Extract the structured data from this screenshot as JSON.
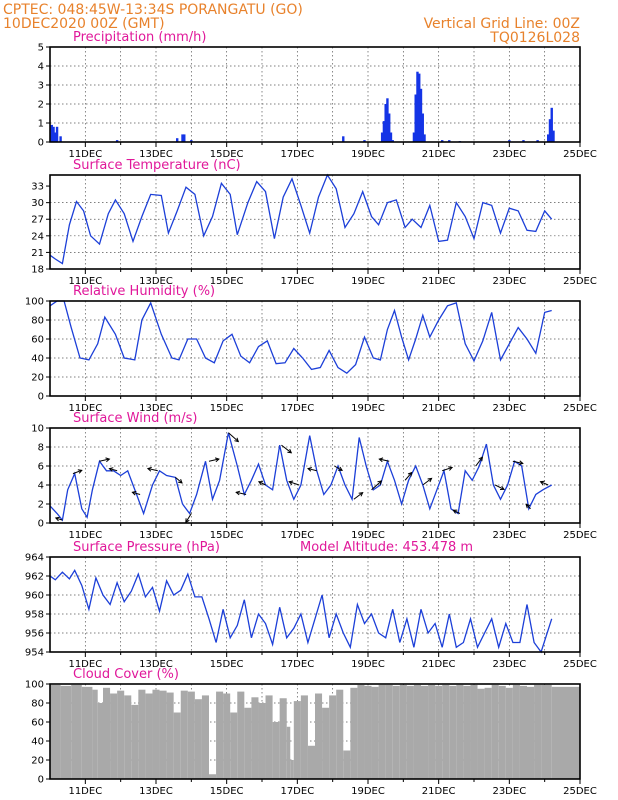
{
  "header": {
    "left_line1": "CPTEC:   048:45W-13:34S   PORANGATU (GO)",
    "left_line2": "10DEC2020 00Z (GMT)",
    "right_line1": "Vertical Grid Line: 00Z",
    "right_line2": "TQ0126L028"
  },
  "colors": {
    "header": "#e8822c",
    "title": "#e0189a",
    "series": "#1c3fd8",
    "precip_bar": "#1434e6",
    "cloud_fill": "#a9a9a9",
    "wind_arrow": "#000000"
  },
  "chart_data": [
    {
      "id": "precip",
      "type": "bar",
      "title": "Precipitation (mm/h)",
      "ylim": [
        0,
        5
      ],
      "yticks": [
        0,
        1,
        2,
        3,
        4,
        5
      ],
      "x_unit": "days since 10DEC2020 00Z",
      "xticks": [
        "11DEC",
        "13DEC",
        "15DEC",
        "17DEC",
        "19DEC",
        "21DEC",
        "23DEC",
        "25DEC"
      ],
      "x": [
        0.05,
        0.1,
        0.15,
        0.2,
        0.3,
        1.9,
        3.6,
        3.75,
        3.8,
        4.0,
        8.3,
        8.9,
        9.4,
        9.45,
        9.5,
        9.55,
        9.6,
        9.65,
        9.7,
        10.3,
        10.35,
        10.4,
        10.45,
        10.5,
        10.55,
        10.6,
        11.1,
        11.3,
        11.6,
        13.0,
        13.4,
        13.8,
        14.1,
        14.15,
        14.2,
        14.25
      ],
      "values": [
        0.9,
        0.8,
        0.5,
        0.8,
        0.3,
        0.1,
        0.2,
        0.4,
        0.4,
        0.1,
        0.3,
        0.1,
        0.5,
        1.1,
        2.0,
        2.3,
        1.5,
        0.5,
        0.1,
        0.5,
        2.5,
        3.7,
        3.6,
        2.8,
        1.5,
        0.4,
        0.1,
        0.1,
        0.05,
        0.1,
        0.1,
        0.1,
        0.4,
        1.2,
        1.8,
        0.6
      ]
    },
    {
      "id": "temp",
      "type": "line",
      "title": "Surface Temperature (nC)",
      "ylim": [
        18,
        35
      ],
      "yticks": [
        18,
        21,
        24,
        27,
        30,
        33
      ],
      "x_unit": "days since 10DEC2020 00Z",
      "xticks": [
        "11DEC",
        "13DEC",
        "15DEC",
        "17DEC",
        "19DEC",
        "21DEC",
        "23DEC",
        "25DEC"
      ],
      "x": [
        0,
        0.15,
        0.35,
        0.55,
        0.75,
        0.95,
        1.15,
        1.4,
        1.65,
        1.85,
        2.1,
        2.35,
        2.6,
        2.85,
        3.15,
        3.35,
        3.6,
        3.85,
        4.1,
        4.35,
        4.6,
        4.85,
        5.1,
        5.3,
        5.6,
        5.85,
        6.1,
        6.35,
        6.6,
        6.85,
        7.1,
        7.35,
        7.6,
        7.85,
        8.1,
        8.35,
        8.6,
        8.85,
        9.1,
        9.3,
        9.55,
        9.8,
        10.05,
        10.25,
        10.5,
        10.75,
        11.0,
        11.25,
        11.5,
        11.75,
        12.0,
        12.25,
        12.5,
        12.75,
        13.0,
        13.25,
        13.5,
        13.75,
        14.0,
        14.2
      ],
      "values": [
        20.5,
        19.8,
        19.0,
        26.0,
        30.2,
        28.5,
        24.0,
        22.5,
        28.0,
        30.5,
        28.0,
        23.0,
        27.5,
        31.5,
        31.3,
        24.5,
        28.5,
        32.8,
        31.5,
        24.0,
        27.5,
        33.5,
        31.5,
        24.2,
        30.0,
        33.8,
        32.0,
        23.5,
        31.0,
        34.3,
        29.5,
        24.5,
        31.0,
        35.0,
        32.5,
        25.5,
        28.0,
        32.0,
        27.5,
        26.0,
        30.0,
        30.5,
        25.5,
        27.0,
        25.5,
        29.5,
        23.0,
        23.2,
        30.0,
        27.5,
        23.5,
        30.0,
        29.5,
        24.5,
        29.0,
        28.5,
        25.0,
        24.8,
        28.5,
        27.0
      ]
    },
    {
      "id": "rh",
      "type": "line",
      "title": "Relative Humidity (%)",
      "ylim": [
        0,
        100
      ],
      "yticks": [
        0,
        20,
        40,
        60,
        80,
        100
      ],
      "x_unit": "days since 10DEC2020 00Z",
      "xticks": [
        "11DEC",
        "13DEC",
        "15DEC",
        "17DEC",
        "19DEC",
        "21DEC",
        "23DEC",
        "25DEC"
      ],
      "x": [
        0,
        0.2,
        0.4,
        0.6,
        0.85,
        1.1,
        1.35,
        1.55,
        1.85,
        2.1,
        2.4,
        2.6,
        2.85,
        3.15,
        3.45,
        3.65,
        3.9,
        4.15,
        4.4,
        4.65,
        4.9,
        5.15,
        5.4,
        5.65,
        5.9,
        6.15,
        6.4,
        6.65,
        6.9,
        7.15,
        7.4,
        7.65,
        7.9,
        8.15,
        8.4,
        8.65,
        8.9,
        9.15,
        9.35,
        9.55,
        9.75,
        9.95,
        10.15,
        10.35,
        10.55,
        10.75,
        11.0,
        11.25,
        11.5,
        11.75,
        12.0,
        12.25,
        12.5,
        12.75,
        13.0,
        13.25,
        13.5,
        13.75,
        14.0,
        14.2
      ],
      "values": [
        95,
        100,
        100,
        72,
        40,
        38,
        55,
        83,
        65,
        40,
        38,
        80,
        98,
        65,
        40,
        38,
        60,
        60,
        40,
        35,
        58,
        65,
        42,
        35,
        52,
        58,
        34,
        35,
        50,
        40,
        28,
        30,
        48,
        30,
        24,
        33,
        62,
        40,
        38,
        70,
        90,
        62,
        38,
        60,
        85,
        62,
        80,
        95,
        98,
        55,
        37,
        58,
        88,
        38,
        55,
        72,
        60,
        45,
        88,
        90
      ]
    },
    {
      "id": "wind",
      "type": "line",
      "title": "Surface Wind (m/s)",
      "ylim": [
        0,
        10
      ],
      "yticks": [
        0,
        2,
        4,
        6,
        8,
        10
      ],
      "x_unit": "days since 10DEC2020 00Z",
      "xticks": [
        "11DEC",
        "13DEC",
        "15DEC",
        "17DEC",
        "19DEC",
        "21DEC",
        "23DEC",
        "25DEC"
      ],
      "x": [
        0,
        0.2,
        0.35,
        0.5,
        0.7,
        0.9,
        1.05,
        1.2,
        1.4,
        1.6,
        1.8,
        2.0,
        2.2,
        2.45,
        2.65,
        2.9,
        3.1,
        3.3,
        3.55,
        3.75,
        3.95,
        4.15,
        4.4,
        4.6,
        4.8,
        5.05,
        5.3,
        5.5,
        5.7,
        5.9,
        6.1,
        6.3,
        6.5,
        6.7,
        6.9,
        7.1,
        7.35,
        7.55,
        7.75,
        7.95,
        8.15,
        8.35,
        8.55,
        8.75,
        8.95,
        9.15,
        9.35,
        9.55,
        9.75,
        9.95,
        10.15,
        10.35,
        10.55,
        10.75,
        10.95,
        11.15,
        11.35,
        11.55,
        11.75,
        11.95,
        12.15,
        12.35,
        12.55,
        12.75,
        12.95,
        13.15,
        13.35,
        13.55,
        13.75,
        13.95,
        14.2
      ],
      "values": [
        1.8,
        1.0,
        0.3,
        3.5,
        5.2,
        1.5,
        0.6,
        3.5,
        6.5,
        5.5,
        5.5,
        5.0,
        5.5,
        3.0,
        1.0,
        4.0,
        5.5,
        5.0,
        4.8,
        2.0,
        1.0,
        3.0,
        6.5,
        2.5,
        4.5,
        9.5,
        6.0,
        3.0,
        4.5,
        6.2,
        4.0,
        3.5,
        8.2,
        4.5,
        2.5,
        4.0,
        9.2,
        5.5,
        3.0,
        4.0,
        6.0,
        4.0,
        2.5,
        9.0,
        6.0,
        3.5,
        4.0,
        6.5,
        4.5,
        2.0,
        4.5,
        6.0,
        4.0,
        1.5,
        3.5,
        5.5,
        1.5,
        1.0,
        5.5,
        4.5,
        6.0,
        8.3,
        4.0,
        2.5,
        4.0,
        6.5,
        6.0,
        1.5,
        3.0,
        3.5,
        4.0
      ],
      "arrows_x": [
        0.35,
        0.65,
        1.4,
        1.9,
        2.55,
        3.05,
        3.55,
        4.0,
        4.5,
        5.05,
        5.55,
        6.1,
        6.55,
        7.05,
        7.55,
        8.05,
        8.6,
        9.1,
        9.6,
        10.05,
        10.55,
        11.1,
        11.6,
        12.05,
        12.6,
        13.1,
        13.6,
        14.1
      ],
      "arrows_u": [
        -3,
        4,
        4.5,
        -3.5,
        -3.5,
        -4.5,
        3,
        -2.5,
        4.5,
        4.5,
        -4.5,
        -3,
        4.5,
        -4.5,
        -4,
        3.5,
        4,
        4.5,
        -4.5,
        3,
        4,
        4.5,
        -3,
        3,
        4,
        4.5,
        -2,
        -3.5
      ],
      "arrows_v": [
        1,
        1.5,
        1,
        1,
        1,
        1,
        -2.5,
        -4,
        1,
        -4,
        1,
        1.5,
        -3.5,
        1.5,
        1,
        -2,
        3,
        4,
        1,
        3.5,
        3,
        1.5,
        1.5,
        4,
        -2,
        -1,
        2,
        1.5
      ]
    },
    {
      "id": "pressure",
      "type": "line",
      "title": "Surface Pressure (hPa)",
      "annotation": "Model Altitude: 453.478 m",
      "ylim": [
        954,
        964
      ],
      "yticks": [
        954,
        956,
        958,
        960,
        962,
        964
      ],
      "x_unit": "days since 10DEC2020 00Z",
      "xticks": [
        "11DEC",
        "13DEC",
        "15DEC",
        "17DEC",
        "19DEC",
        "21DEC",
        "23DEC",
        "25DEC"
      ],
      "x": [
        0,
        0.15,
        0.35,
        0.55,
        0.7,
        0.9,
        1.1,
        1.3,
        1.5,
        1.7,
        1.9,
        2.1,
        2.3,
        2.5,
        2.7,
        2.9,
        3.1,
        3.3,
        3.5,
        3.7,
        3.9,
        4.1,
        4.3,
        4.5,
        4.7,
        4.9,
        5.1,
        5.3,
        5.5,
        5.7,
        5.9,
        6.1,
        6.3,
        6.5,
        6.7,
        6.9,
        7.1,
        7.3,
        7.5,
        7.7,
        7.9,
        8.1,
        8.3,
        8.5,
        8.7,
        8.9,
        9.1,
        9.3,
        9.5,
        9.7,
        9.9,
        10.1,
        10.3,
        10.5,
        10.7,
        10.9,
        11.1,
        11.3,
        11.5,
        11.7,
        11.9,
        12.1,
        12.3,
        12.5,
        12.7,
        12.9,
        13.1,
        13.3,
        13.5,
        13.7,
        13.9,
        14.2
      ],
      "values": [
        962.0,
        961.6,
        962.4,
        961.7,
        962.6,
        961.0,
        958.5,
        961.8,
        960.0,
        959.0,
        961.3,
        959.3,
        960.4,
        962.2,
        959.8,
        960.8,
        958.3,
        961.5,
        960.0,
        960.5,
        962.2,
        959.8,
        959.8,
        957.5,
        955.0,
        958.5,
        955.5,
        956.8,
        959.5,
        955.5,
        958.0,
        957.0,
        954.8,
        958.7,
        955.5,
        956.5,
        958.0,
        955.0,
        957.5,
        960.0,
        955.5,
        958.0,
        956.0,
        954.5,
        959.0,
        957.0,
        958.0,
        956.0,
        955.5,
        958.5,
        955.0,
        957.5,
        954.5,
        958.5,
        956.0,
        957.0,
        954.5,
        958.0,
        954.5,
        955.0,
        957.5,
        954.5,
        956.0,
        957.5,
        954.5,
        957.0,
        955.0,
        955.0,
        959.0,
        955.0,
        954.0,
        957.5
      ]
    },
    {
      "id": "cloud",
      "type": "area",
      "title": "Cloud Cover (%)",
      "ylim": [
        0,
        100
      ],
      "yticks": [
        0,
        20,
        40,
        60,
        80,
        100
      ],
      "x_unit": "days since 10DEC2020 00Z",
      "xticks": [
        "11DEC",
        "13DEC",
        "15DEC",
        "17DEC",
        "19DEC",
        "21DEC",
        "23DEC",
        "25DEC"
      ],
      "x": [
        0,
        0.3,
        0.6,
        0.9,
        1.2,
        1.35,
        1.5,
        1.7,
        1.9,
        2.1,
        2.3,
        2.5,
        2.7,
        2.9,
        3.1,
        3.3,
        3.5,
        3.7,
        3.9,
        4.1,
        4.3,
        4.5,
        4.7,
        4.9,
        5.1,
        5.3,
        5.5,
        5.7,
        5.9,
        6.1,
        6.3,
        6.5,
        6.7,
        6.8,
        6.9,
        7.1,
        7.3,
        7.5,
        7.7,
        7.9,
        8.1,
        8.3,
        8.5,
        8.7,
        8.9,
        9.1,
        9.3,
        9.5,
        9.7,
        9.9,
        10.1,
        10.3,
        10.5,
        10.7,
        10.9,
        11.1,
        11.3,
        11.5,
        11.7,
        11.9,
        12.1,
        12.3,
        12.5,
        12.7,
        12.9,
        13.1,
        13.3,
        13.5,
        13.7,
        13.9,
        14.2
      ],
      "values": [
        99,
        98,
        99,
        97,
        94,
        80,
        96,
        90,
        93,
        88,
        78,
        94,
        90,
        94,
        93,
        91,
        70,
        93,
        92,
        84,
        88,
        5,
        92,
        90,
        70,
        92,
        75,
        86,
        80,
        88,
        60,
        85,
        55,
        20,
        82,
        88,
        35,
        90,
        75,
        88,
        94,
        30,
        96,
        99,
        98,
        97,
        99,
        99,
        98,
        99,
        98,
        99,
        98,
        99,
        98,
        99,
        98,
        99,
        98,
        99,
        95,
        96,
        99,
        98,
        96,
        99,
        98,
        97,
        99,
        99,
        97
      ]
    }
  ]
}
